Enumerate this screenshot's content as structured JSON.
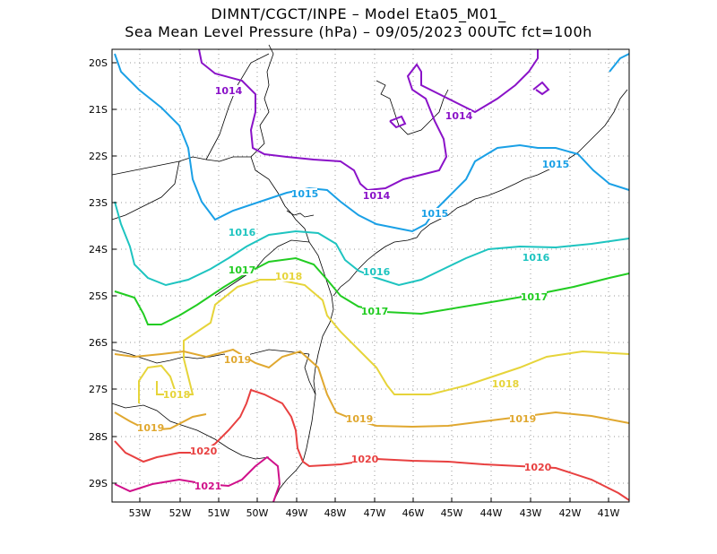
{
  "title": {
    "line1": "DIMNT/CGCT/INPE –  Model Eta05_M01_",
    "line2": "Sea Mean Level Pressure (hPa) – 09/05/2023 00UTC fct=100h"
  },
  "axes": {
    "lon_labels": [
      "53W",
      "52W",
      "51W",
      "50W",
      "49W",
      "48W",
      "47W",
      "46W",
      "45W",
      "44W",
      "43W",
      "42W",
      "41W"
    ],
    "lat_labels": [
      "20S",
      "21S",
      "22S",
      "23S",
      "24S",
      "25S",
      "26S",
      "27S",
      "28S",
      "29S"
    ]
  },
  "contours": [
    {
      "value": "1014",
      "color": "#8a12c8"
    },
    {
      "value": "1015",
      "color": "#1aa0e6"
    },
    {
      "value": "1016",
      "color": "#1ec4c0"
    },
    {
      "value": "1017",
      "color": "#22cc22"
    },
    {
      "value": "1018",
      "color": "#e6d43a"
    },
    {
      "value": "1019",
      "color": "#e0a830"
    },
    {
      "value": "1020",
      "color": "#e84040"
    },
    {
      "value": "1021",
      "color": "#d0108a"
    }
  ],
  "contour_labels": [
    {
      "text": "1014",
      "color": "#8a12c8"
    },
    {
      "text": "1014",
      "color": "#8a12c8"
    },
    {
      "text": "1014",
      "color": "#8a12c8"
    },
    {
      "text": "1015",
      "color": "#1aa0e6"
    },
    {
      "text": "1015",
      "color": "#1aa0e6"
    },
    {
      "text": "1015",
      "color": "#1aa0e6"
    },
    {
      "text": "1016",
      "color": "#1ec4c0"
    },
    {
      "text": "1016",
      "color": "#1ec4c0"
    },
    {
      "text": "1016",
      "color": "#1ec4c0"
    },
    {
      "text": "1017",
      "color": "#22cc22"
    },
    {
      "text": "1017",
      "color": "#22cc22"
    },
    {
      "text": "1017",
      "color": "#22cc22"
    },
    {
      "text": "1018",
      "color": "#e6d43a"
    },
    {
      "text": "1018",
      "color": "#e6d43a"
    },
    {
      "text": "1018",
      "color": "#e6d43a"
    },
    {
      "text": "1019",
      "color": "#e0a830"
    },
    {
      "text": "1019",
      "color": "#e0a830"
    },
    {
      "text": "1019",
      "color": "#e0a830"
    },
    {
      "text": "1019",
      "color": "#e0a830"
    },
    {
      "text": "1020",
      "color": "#e84040"
    },
    {
      "text": "1020",
      "color": "#e84040"
    },
    {
      "text": "1020",
      "color": "#e84040"
    },
    {
      "text": "1021",
      "color": "#d0108a"
    }
  ]
}
